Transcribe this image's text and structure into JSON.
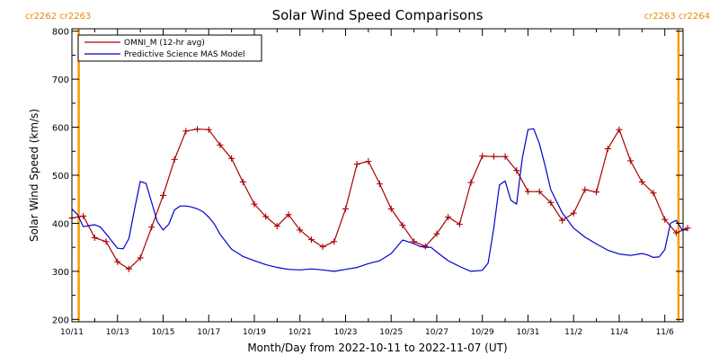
{
  "chart_data": {
    "type": "line",
    "title": "Solar Wind Speed Comparisons",
    "xlabel": "Month/Day from 2022-10-11 to 2022-11-07 (UT)",
    "ylabel": "Solar Wind Speed (km/s)",
    "ylim": [
      195,
      805
    ],
    "yticks": [
      200,
      300,
      400,
      500,
      600,
      700,
      800
    ],
    "xlim_days": [
      0,
      26.8
    ],
    "xticks": [
      {
        "day": 0,
        "label": "10/11"
      },
      {
        "day": 2,
        "label": "10/13"
      },
      {
        "day": 4,
        "label": "10/15"
      },
      {
        "day": 6,
        "label": "10/17"
      },
      {
        "day": 8,
        "label": "10/19"
      },
      {
        "day": 10,
        "label": "10/21"
      },
      {
        "day": 12,
        "label": "10/23"
      },
      {
        "day": 14,
        "label": "10/25"
      },
      {
        "day": 16,
        "label": "10/27"
      },
      {
        "day": 18,
        "label": "10/29"
      },
      {
        "day": 20,
        "label": "10/31"
      },
      {
        "day": 22,
        "label": "11/2"
      },
      {
        "day": 24,
        "label": "11/4"
      },
      {
        "day": 26,
        "label": "11/6"
      }
    ],
    "grid": false,
    "legend_position": "top-left",
    "carrington_labels": {
      "left": "cr2262 cr2263",
      "right": "cr2263 cr2264",
      "left_day": 0.3,
      "right_day": 26.6
    },
    "series": [
      {
        "name": "OMNI_M (12-hr avg)",
        "color": "#aa0000",
        "markers": true,
        "x": [
          0,
          0.5,
          1,
          1.5,
          2,
          2.5,
          3,
          3.5,
          4,
          4.5,
          5,
          5.5,
          6,
          6.5,
          7,
          7.5,
          8,
          8.5,
          9,
          9.5,
          10,
          10.5,
          11,
          11.5,
          12,
          12.5,
          13,
          13.5,
          14,
          14.5,
          15,
          15.5,
          16,
          16.5,
          17,
          17.5,
          18,
          18.5,
          19,
          19.5,
          20,
          20.5,
          21,
          21.5,
          22,
          22.5,
          23,
          23.5,
          24,
          24.5,
          25,
          25.5,
          26,
          26.5,
          27
        ],
        "y": [
          411,
          415,
          370,
          362,
          320,
          305,
          328,
          392,
          458,
          533,
          592,
          596,
          595,
          563,
          535,
          486,
          440,
          414,
          394,
          418,
          386,
          366,
          351,
          362,
          430,
          523,
          529,
          482,
          430,
          396,
          362,
          352,
          378,
          413,
          398,
          485,
          540,
          539,
          539,
          510,
          466,
          466,
          443,
          406,
          421,
          470,
          465,
          555,
          595,
          530,
          486,
          463,
          408,
          380,
          390
        ]
      },
      {
        "name": "Predictive Science MAS Model",
        "color": "#0000cc",
        "markers": false,
        "x": [
          0,
          0.25,
          0.5,
          0.75,
          1,
          1.25,
          1.5,
          1.75,
          2,
          2.25,
          2.5,
          2.75,
          3,
          3.25,
          3.5,
          3.75,
          4,
          4.25,
          4.5,
          4.75,
          5,
          5.25,
          5.5,
          5.75,
          6,
          6.25,
          6.5,
          7,
          7.5,
          8,
          8.5,
          9,
          9.5,
          10,
          10.5,
          11,
          11.5,
          12,
          12.5,
          13,
          13.5,
          14,
          14.5,
          15,
          15.25,
          15.5,
          15.75,
          16,
          16.5,
          17,
          17.5,
          18,
          18.25,
          18.5,
          18.75,
          19,
          19.25,
          19.5,
          19.75,
          20,
          20.25,
          20.5,
          20.75,
          21,
          21.5,
          22,
          22.5,
          23,
          23.5,
          24,
          24.5,
          25,
          25.25,
          25.5,
          25.75,
          26,
          26.25,
          26.5,
          26.75,
          27
        ],
        "y": [
          430,
          418,
          393,
          395,
          397,
          392,
          378,
          363,
          348,
          347,
          368,
          430,
          487,
          483,
          443,
          403,
          386,
          398,
          428,
          436,
          436,
          434,
          430,
          424,
          413,
          398,
          377,
          346,
          331,
          322,
          314,
          308,
          304,
          303,
          305,
          303,
          300,
          304,
          308,
          316,
          322,
          337,
          365,
          358,
          352,
          350,
          350,
          340,
          322,
          310,
          300,
          302,
          317,
          390,
          480,
          488,
          448,
          440,
          535,
          595,
          597,
          566,
          520,
          470,
          422,
          390,
          371,
          357,
          344,
          336,
          333,
          337,
          334,
          329,
          330,
          345,
          400,
          406,
          387,
          386
        ]
      }
    ]
  }
}
